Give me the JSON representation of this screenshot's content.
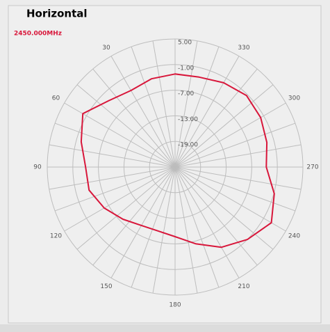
{
  "chart_data": {
    "type": "polar",
    "title": "Horizontal",
    "subtitle": "2450.000MHz",
    "theta": [
      0,
      15,
      30,
      45,
      60,
      75,
      90,
      105,
      120,
      135,
      150,
      165,
      180,
      195,
      210,
      225,
      240,
      255,
      270,
      285,
      300,
      315,
      330,
      345
    ],
    "series": [
      {
        "color": "#d8163a",
        "values": [
          -3.2,
          -3.6,
          -4.3,
          -3.0,
          0.0,
          -2.2,
          -4.0,
          -4.1,
          -5.8,
          -7.7,
          -9.2,
          -9.5,
          -8.7,
          -6.4,
          -3.3,
          -1.0,
          1.1,
          -0.9,
          -3.6,
          -2.7,
          -1.8,
          -1.3,
          -2.2,
          -3.2
        ]
      }
    ],
    "rlim": [
      -25,
      5
    ],
    "rticks": [
      {
        "value": 5,
        "label": "5.00"
      },
      {
        "value": -1,
        "label": "-1.00"
      },
      {
        "value": -7,
        "label": "-7.00"
      },
      {
        "value": -13,
        "label": "-13.00"
      },
      {
        "value": -19,
        "label": "-19.00"
      }
    ],
    "angle_ticks": [
      30,
      60,
      90,
      120,
      150,
      180,
      210,
      240,
      270,
      300,
      330
    ],
    "angle_grid": [
      0,
      10,
      20,
      30,
      40,
      50,
      60,
      70,
      80,
      90,
      100,
      110,
      120,
      130,
      140,
      150,
      160,
      170,
      180,
      190,
      200,
      210,
      220,
      230,
      240,
      250,
      260,
      270,
      280,
      290,
      300,
      310,
      320,
      330,
      340,
      350
    ]
  }
}
